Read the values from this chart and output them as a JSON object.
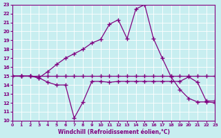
{
  "xlabel": "Windchill (Refroidissement éolien,°C)",
  "xlim": [
    0,
    23
  ],
  "ylim": [
    10,
    23
  ],
  "yticks": [
    10,
    11,
    12,
    13,
    14,
    15,
    16,
    17,
    18,
    19,
    20,
    21,
    22,
    23
  ],
  "xticks": [
    0,
    1,
    2,
    3,
    4,
    5,
    6,
    7,
    8,
    9,
    10,
    11,
    12,
    13,
    14,
    15,
    16,
    17,
    18,
    19,
    20,
    21,
    22,
    23
  ],
  "bg_color": "#c8eef0",
  "line_color": "#800080",
  "grid_color": "#ffffff",
  "line1_x": [
    0,
    1,
    2,
    3,
    4,
    5,
    6,
    7,
    8,
    9,
    10,
    11,
    12,
    13,
    14,
    15,
    16,
    17,
    18,
    19,
    20,
    21,
    22,
    23
  ],
  "line1_y": [
    15.0,
    15.0,
    15.0,
    14.8,
    14.3,
    14.0,
    14.0,
    10.3,
    12.1,
    14.4,
    14.4,
    14.3,
    14.4,
    14.4,
    14.4,
    14.4,
    14.4,
    14.4,
    14.4,
    14.4,
    14.9,
    14.3,
    12.2,
    12.2
  ],
  "line2_x": [
    0,
    1,
    2,
    3,
    4,
    5,
    6,
    7,
    8,
    9,
    10,
    11,
    12,
    13,
    14,
    15,
    16,
    17,
    18,
    19,
    20,
    21,
    22,
    23
  ],
  "line2_y": [
    15.0,
    15.0,
    15.0,
    15.0,
    15.0,
    15.0,
    15.0,
    15.0,
    15.0,
    15.0,
    15.0,
    15.0,
    15.0,
    15.0,
    15.0,
    15.0,
    15.0,
    15.0,
    15.0,
    15.0,
    15.0,
    15.0,
    15.0,
    15.0
  ],
  "line3_x": [
    0,
    1,
    2,
    3,
    4,
    5,
    6,
    7,
    8,
    9,
    10,
    11,
    12,
    13,
    14,
    15,
    16,
    17,
    18,
    19,
    20,
    21,
    22,
    23
  ],
  "line3_y": [
    15.0,
    15.0,
    15.0,
    14.8,
    15.5,
    16.3,
    17.0,
    17.5,
    18.0,
    18.7,
    19.1,
    20.8,
    21.3,
    19.2,
    22.5,
    23.0,
    19.2,
    17.0,
    14.9,
    13.5,
    12.5,
    12.1,
    12.1,
    12.0
  ]
}
